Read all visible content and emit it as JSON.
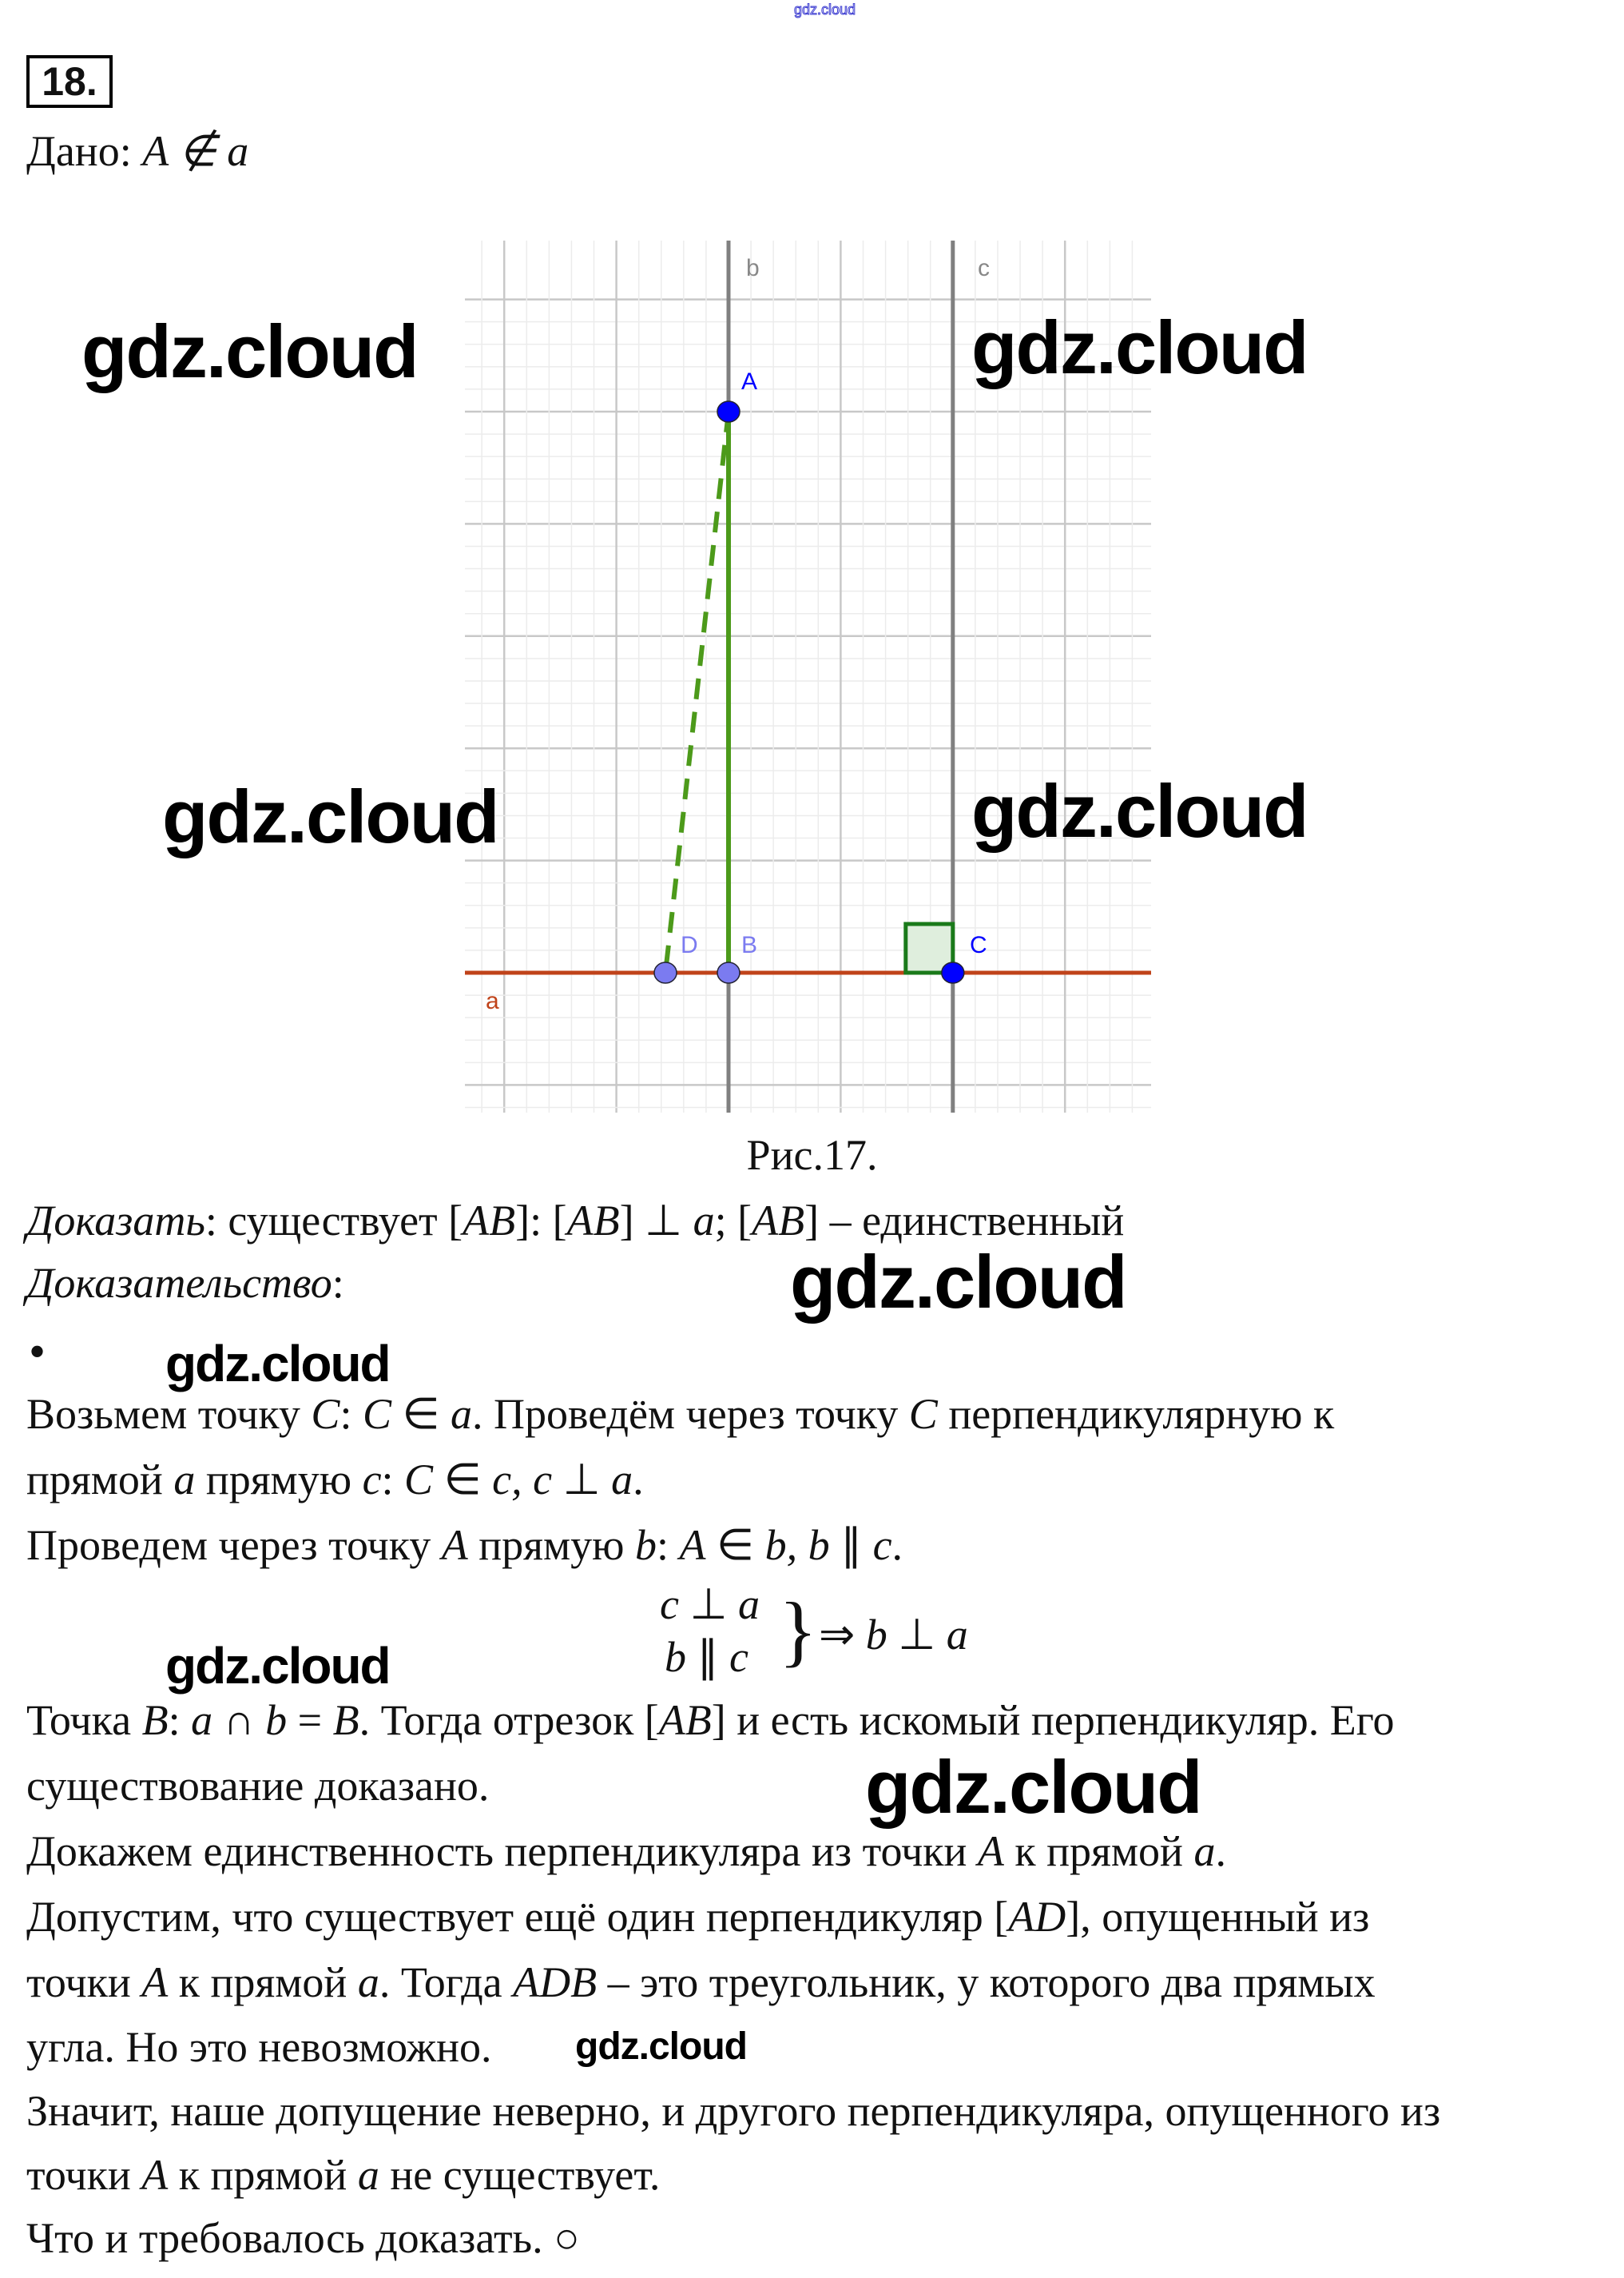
{
  "watermark_text": "gdz.cloud",
  "problem_number": "18.",
  "given": [
    {
      "t": "Дано: "
    },
    {
      "t": "A ∉ a",
      "i": true
    }
  ],
  "figure": {
    "caption": "Рис.17.",
    "line_labels": {
      "a": "a",
      "b": "b",
      "c": "c"
    },
    "point_labels": {
      "A": "A",
      "B": "B",
      "C": "C",
      "D": "D"
    },
    "colors": {
      "line_a": "#c0431a",
      "lines_bc": "#808080",
      "segment": "#4c9a1a",
      "point_dark": "#0000ff",
      "point_light": "#7b7bf0",
      "right_angle": "#1a7a1a",
      "grid_major": "#c8c8c8",
      "grid_minor": "#ececec"
    }
  },
  "to_prove": [
    {
      "t": "Доказать",
      "i": true
    },
    {
      "t": ": существует ["
    },
    {
      "t": "AB",
      "i": true
    },
    {
      "t": "]: ["
    },
    {
      "t": "AB",
      "i": true
    },
    {
      "t": "] ⊥ "
    },
    {
      "t": "a",
      "i": true
    },
    {
      "t": "; ["
    },
    {
      "t": "AB",
      "i": true
    },
    {
      "t": "] – единственный"
    }
  ],
  "proof_label": [
    {
      "t": "Доказательство",
      "i": true
    },
    {
      "t": ":"
    }
  ],
  "bullet": "•",
  "proof_lines": [
    [
      {
        "t": "Возьмем точку "
      },
      {
        "t": "C",
        "i": true
      },
      {
        "t": ": "
      },
      {
        "t": "C",
        "i": true
      },
      {
        "t": " ∈ "
      },
      {
        "t": "a",
        "i": true
      },
      {
        "t": ". Проведём через точку "
      },
      {
        "t": "C",
        "i": true
      },
      {
        "t": " перпендикулярную к"
      }
    ],
    [
      {
        "t": "прямой "
      },
      {
        "t": "a",
        "i": true
      },
      {
        "t": " прямую "
      },
      {
        "t": "c",
        "i": true
      },
      {
        "t": ": "
      },
      {
        "t": "C",
        "i": true
      },
      {
        "t": " ∈ "
      },
      {
        "t": "c, c",
        "i": true
      },
      {
        "t": " ⊥ "
      },
      {
        "t": "a",
        "i": true
      },
      {
        "t": "."
      }
    ],
    [
      {
        "t": "Проведем через точку "
      },
      {
        "t": "A",
        "i": true
      },
      {
        "t": " прямую "
      },
      {
        "t": "b",
        "i": true
      },
      {
        "t": ": "
      },
      {
        "t": "A",
        "i": true
      },
      {
        "t": " ∈ "
      },
      {
        "t": "b, b",
        "i": true
      },
      {
        "t": " ∥ "
      },
      {
        "t": "c",
        "i": true
      },
      {
        "t": "."
      }
    ]
  ],
  "system": {
    "row1": [
      {
        "t": "c",
        "i": true
      },
      {
        "t": " ⊥ "
      },
      {
        "t": "a",
        "i": true
      }
    ],
    "row2": [
      {
        "t": "b",
        "i": true
      },
      {
        "t": " ∥ "
      },
      {
        "t": "c",
        "i": true
      }
    ],
    "brace": "}",
    "result": [
      {
        "t": "⇒ "
      },
      {
        "t": "b",
        "i": true
      },
      {
        "t": " ⊥ "
      },
      {
        "t": "a",
        "i": true
      }
    ]
  },
  "proof_lines_2": [
    [
      {
        "t": "Точка "
      },
      {
        "t": "B",
        "i": true
      },
      {
        "t": ": "
      },
      {
        "t": "a",
        "i": true
      },
      {
        "t": " ∩ "
      },
      {
        "t": "b",
        "i": true
      },
      {
        "t": " = "
      },
      {
        "t": "B",
        "i": true
      },
      {
        "t": ". Тогда отрезок ["
      },
      {
        "t": "AB",
        "i": true
      },
      {
        "t": "] и есть искомый перпендикуляр. Его"
      }
    ],
    [
      {
        "t": "существование доказано."
      }
    ],
    [
      {
        "t": "Докажем единственность перпендикуляра из точки "
      },
      {
        "t": "A",
        "i": true
      },
      {
        "t": " к прямой "
      },
      {
        "t": "a",
        "i": true
      },
      {
        "t": "."
      }
    ],
    [
      {
        "t": "Допустим, что существует ещё один перпендикуляр ["
      },
      {
        "t": "AD",
        "i": true
      },
      {
        "t": "], опущенный из"
      }
    ],
    [
      {
        "t": "точки "
      },
      {
        "t": "A",
        "i": true
      },
      {
        "t": " к прямой "
      },
      {
        "t": "a",
        "i": true
      },
      {
        "t": ". Тогда "
      },
      {
        "t": "ADB",
        "i": true
      },
      {
        "t": " – это треугольник, у которого два прямых"
      }
    ],
    [
      {
        "t": "угла. Но это невозможно."
      }
    ],
    [
      {
        "t": "Значит, наше допущение неверно, и другого перпендикуляра, опущенного из"
      }
    ],
    [
      {
        "t": "точки "
      },
      {
        "t": "A",
        "i": true
      },
      {
        "t": " к прямой "
      },
      {
        "t": "a",
        "i": true
      },
      {
        "t": " не существует."
      }
    ],
    [
      {
        "t": "Что и требовалось доказать. ○"
      }
    ]
  ]
}
